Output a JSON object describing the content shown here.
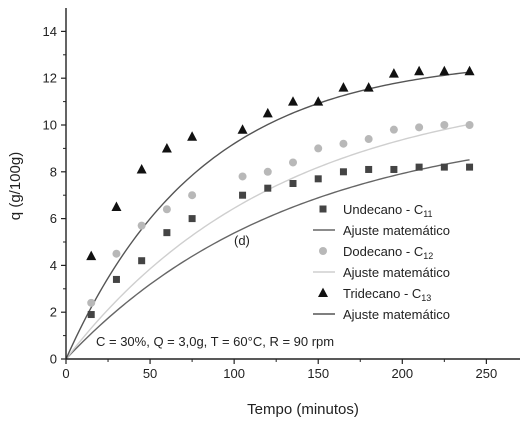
{
  "chart_data": {
    "type": "scatter",
    "title": "",
    "xlabel": "Tempo (minutos)",
    "ylabel": "q (g/100g)",
    "xlim": [
      0,
      270
    ],
    "ylim": [
      0,
      15
    ],
    "xticks": [
      "0",
      "50",
      "100",
      "150",
      "200",
      "250"
    ],
    "yticks": [
      "0",
      "2",
      "4",
      "6",
      "8",
      "10",
      "12",
      "14"
    ],
    "panel_label": "(d)",
    "conditions": "C = 30%, Q = 3,0g, T = 60°C, R = 90 rpm",
    "legend_position": "right-middle",
    "series": [
      {
        "name": "Undecano - C",
        "name_subscript": "11",
        "marker": "square",
        "color": "#444444",
        "x": [
          15,
          30,
          45,
          60,
          75,
          105,
          120,
          135,
          150,
          165,
          180,
          195,
          210,
          225,
          240
        ],
        "y": [
          1.9,
          3.4,
          4.2,
          5.4,
          6.0,
          7.0,
          7.3,
          7.5,
          7.7,
          8.0,
          8.1,
          8.1,
          8.2,
          8.2,
          8.2
        ],
        "fit_name": "Ajuste matemático",
        "fit": {
          "qe": 10.2,
          "k": 0.0075,
          "color": "#666666"
        }
      },
      {
        "name": "Dodecano - C",
        "name_subscript": "12",
        "marker": "circle",
        "color": "#b8b8b8",
        "x": [
          15,
          30,
          45,
          60,
          75,
          105,
          120,
          135,
          150,
          165,
          180,
          195,
          210,
          225,
          240
        ],
        "y": [
          2.4,
          4.5,
          5.7,
          6.4,
          7.0,
          7.8,
          8.0,
          8.4,
          9.0,
          9.2,
          9.4,
          9.8,
          9.9,
          10.0,
          10.0
        ],
        "fit_name": "Ajuste matemático",
        "fit": {
          "qe": 11.8,
          "k": 0.0079,
          "color": "#cfcfcf"
        }
      },
      {
        "name": "Tridecano - C",
        "name_subscript": "13",
        "marker": "triangle",
        "color": "#111111",
        "x": [
          15,
          30,
          45,
          60,
          75,
          105,
          120,
          135,
          150,
          165,
          180,
          195,
          210,
          225,
          240
        ],
        "y": [
          4.4,
          6.5,
          8.1,
          9.0,
          9.5,
          9.8,
          10.5,
          11.0,
          11.0,
          11.6,
          11.6,
          12.2,
          12.3,
          12.3,
          12.3
        ],
        "fit_name": "Ajuste matemático",
        "fit": {
          "qe": 12.9,
          "k": 0.0125,
          "color": "#555555"
        }
      }
    ]
  }
}
